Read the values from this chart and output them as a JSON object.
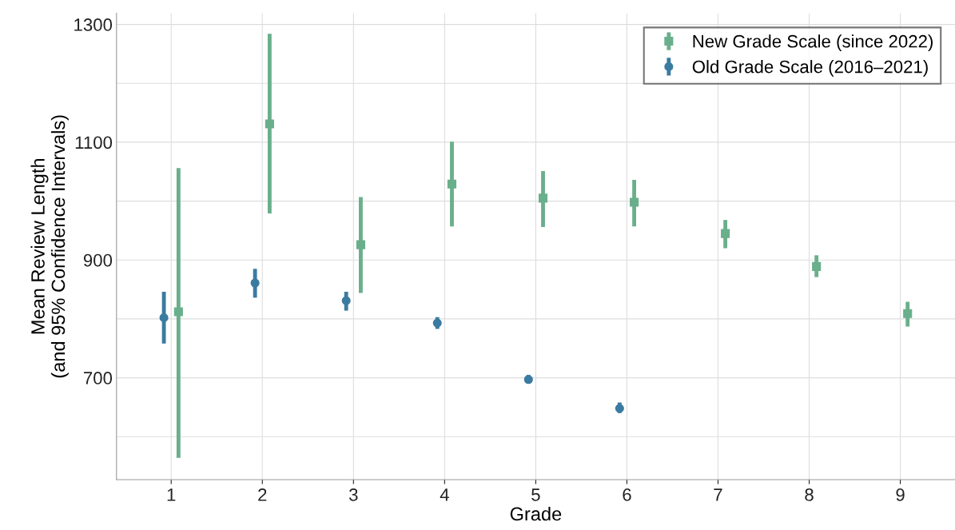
{
  "chart_data": {
    "type": "scatter",
    "xlabel": "Grade",
    "ylabel": "Mean Review Length\n(and 95% Confidence Intervals)",
    "categories": [
      "1",
      "2",
      "3",
      "4",
      "5",
      "6",
      "7",
      "8",
      "9"
    ],
    "series": [
      {
        "name": "New Grade Scale (since 2022)",
        "color": "#6aaf8c",
        "marker": "square",
        "values": [
          812,
          1131,
          926,
          1029,
          1005,
          998,
          945,
          889,
          809
        ],
        "errors": [
          [
            564,
            1056
          ],
          [
            979,
            1284
          ],
          [
            844,
            1007
          ],
          [
            957,
            1101
          ],
          [
            956,
            1051
          ],
          [
            957,
            1036
          ],
          [
            920,
            968
          ],
          [
            871,
            908
          ],
          [
            787,
            829
          ]
        ]
      },
      {
        "name": "Old Grade Scale (2016–2021)",
        "color": "#3b7ba1",
        "marker": "circle",
        "values": [
          802,
          861,
          831,
          793,
          697,
          648,
          null,
          null,
          null
        ],
        "errors": [
          [
            758,
            846
          ],
          [
            836,
            885
          ],
          [
            814,
            846
          ],
          [
            783,
            803
          ],
          [
            690,
            705
          ],
          [
            640,
            658
          ],
          null,
          null,
          null
        ]
      }
    ],
    "ylim": [
      527,
      1319
    ],
    "yticks": [
      {
        "value": 600,
        "label": null
      },
      700,
      {
        "value": 800,
        "label": null
      },
      900,
      {
        "value": 1000,
        "label": null
      },
      1100,
      {
        "value": 1200,
        "label": null
      },
      1300
    ],
    "grid": true,
    "legend": "top right"
  }
}
